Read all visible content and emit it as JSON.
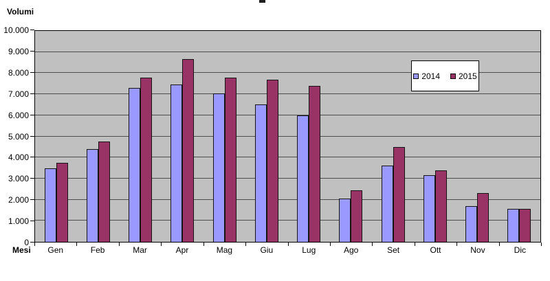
{
  "chart_data": {
    "type": "bar",
    "title": "",
    "ylabel": "Volumi",
    "xlabel": "Mesi",
    "ylim": [
      0,
      10000
    ],
    "y_tick_interval": 1000,
    "y_tick_labels": [
      "0",
      "1.000",
      "2.000",
      "3.000",
      "4.000",
      "5.000",
      "6.000",
      "7.000",
      "8.000",
      "9.000",
      "10.000"
    ],
    "categories": [
      "Gen",
      "Feb",
      "Mar",
      "Apr",
      "Mag",
      "Giu",
      "Lug",
      "Ago",
      "Set",
      "Ott",
      "Nov",
      "Dic"
    ],
    "series": [
      {
        "name": "2014",
        "color": "#9999FF",
        "values": [
          3500,
          4400,
          7300,
          7450,
          7050,
          6500,
          6000,
          2050,
          3600,
          3150,
          1700,
          1550
        ]
      },
      {
        "name": "2015",
        "color": "#993366",
        "values": [
          3750,
          4750,
          7800,
          8650,
          7800,
          7700,
          7400,
          2450,
          4500,
          3400,
          2300,
          1550
        ]
      }
    ],
    "legend_position": "top-right",
    "legend_labels": [
      "2014",
      "2015"
    ],
    "grid": "horizontal",
    "plot_background": "#C0C0C0",
    "gridline_color": "#4d4d4d"
  }
}
